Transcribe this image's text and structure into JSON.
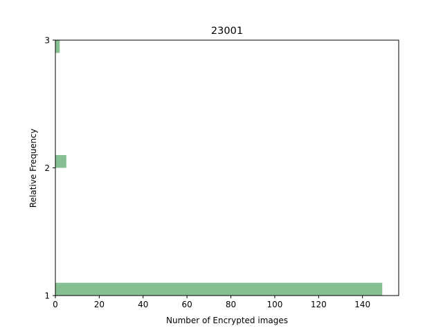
{
  "chart_data": {
    "type": "bar",
    "orientation": "horizontal",
    "title": "23001",
    "xlabel": "Number of Encrypted images",
    "ylabel": "Relative Frequency",
    "xlim": [
      0,
      156.5
    ],
    "ylim": [
      1,
      3
    ],
    "x_ticks": [
      0,
      20,
      40,
      60,
      80,
      100,
      120,
      140
    ],
    "y_ticks": [
      1,
      2,
      3
    ],
    "bars": [
      {
        "y_start": 1.0,
        "y_end": 1.1,
        "value": 149
      },
      {
        "y_start": 2.0,
        "y_end": 2.1,
        "value": 5
      },
      {
        "y_start": 2.9,
        "y_end": 3.0,
        "value": 2
      }
    ],
    "bar_color": "#86bf91",
    "grid": false,
    "legend": "none"
  }
}
